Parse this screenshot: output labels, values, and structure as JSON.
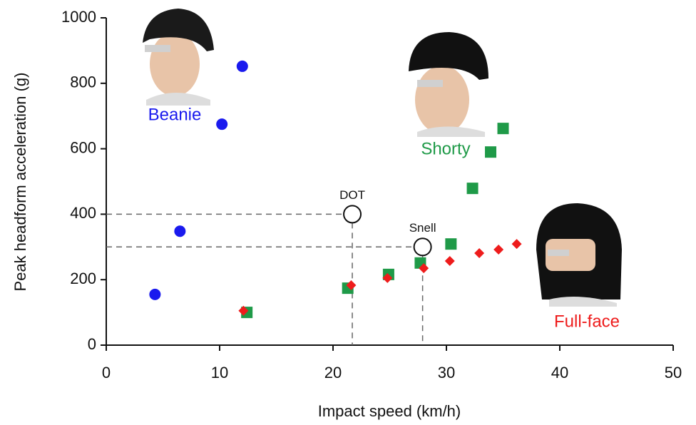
{
  "chart_data": {
    "type": "scatter",
    "x_label": "Impact speed (km/h)",
    "y_label": "Peak headform acceleration (g)",
    "xlim": [
      0,
      50
    ],
    "xticks": [
      0,
      10,
      20,
      30,
      40,
      50
    ],
    "ylim": [
      0,
      1000
    ],
    "yticks": [
      0,
      200,
      400,
      600,
      800,
      1000
    ],
    "series": [
      {
        "name": "Beanie",
        "color": "#1a1aee",
        "marker": "circle",
        "x": [
          4.3,
          6.5,
          10.2,
          12.0
        ],
        "values": [
          155,
          348,
          675,
          852
        ]
      },
      {
        "name": "Shorty",
        "color": "#1f9a48",
        "marker": "square",
        "x": [
          12.4,
          21.3,
          24.9,
          27.7,
          30.4,
          32.3,
          33.9,
          35.0
        ],
        "values": [
          100,
          174,
          216,
          251,
          309,
          479,
          590,
          662
        ]
      },
      {
        "name": "Full-face",
        "color": "#ee1c1c",
        "marker": "diamond",
        "x": [
          12.1,
          21.6,
          24.8,
          28.0,
          30.3,
          32.9,
          34.6,
          36.2
        ],
        "values": [
          105,
          183,
          205,
          235,
          257,
          281,
          292,
          309
        ]
      }
    ],
    "references": [
      {
        "name": "DOT",
        "x": 21.7,
        "y": 400
      },
      {
        "name": "Snell",
        "x": 27.9,
        "y": 300
      }
    ]
  }
}
